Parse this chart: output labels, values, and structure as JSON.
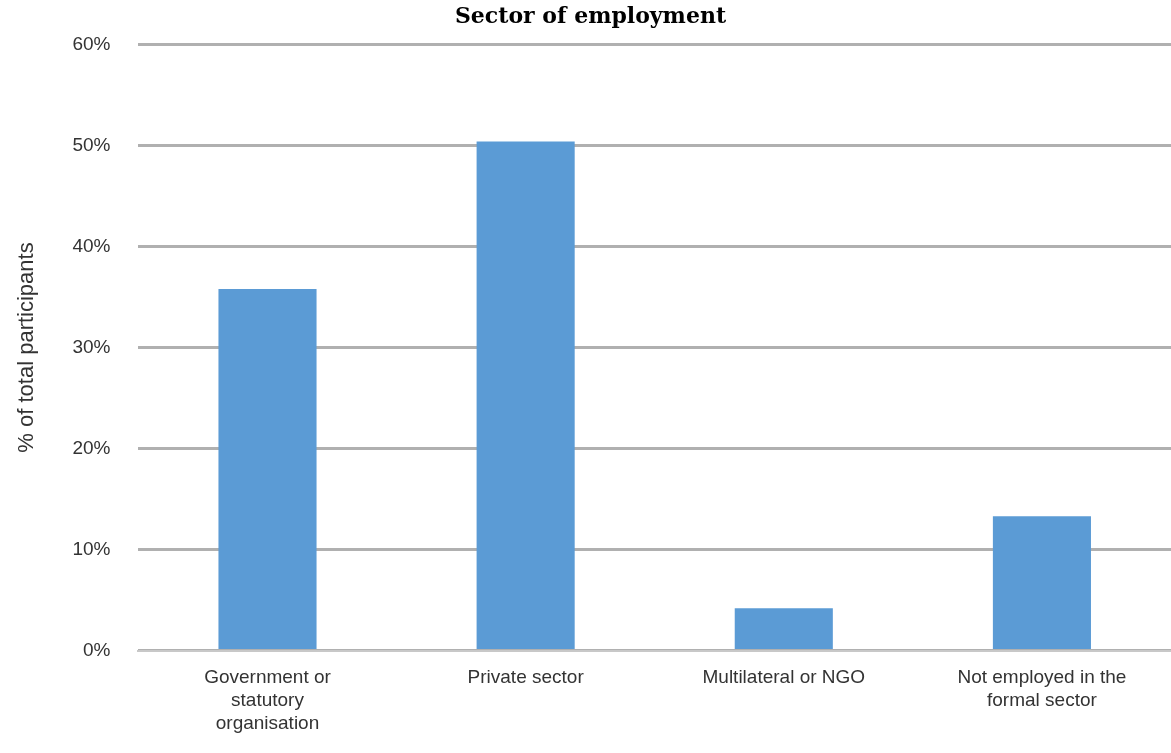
{
  "chart_data": {
    "type": "bar",
    "title": "Sector of employment",
    "ylabel": "% of total participants",
    "categories": [
      "Government or statutory organisation",
      "Private sector",
      "Multilateral or NGO",
      "Not employed in the formal sector"
    ],
    "values": [
      35.8,
      50.4,
      4.2,
      13.3
    ],
    "color": "#5b9bd5",
    "ylim": [
      0,
      60
    ],
    "yticks": [
      {
        "value": 0,
        "label": "0%"
      },
      {
        "value": 10,
        "label": "10%"
      },
      {
        "value": 20,
        "label": "20%"
      },
      {
        "value": 30,
        "label": "30%"
      },
      {
        "value": 40,
        "label": "40%"
      },
      {
        "value": 50,
        "label": "50%"
      },
      {
        "value": 60,
        "label": "60%"
      }
    ],
    "grid": "y",
    "legend": false
  }
}
